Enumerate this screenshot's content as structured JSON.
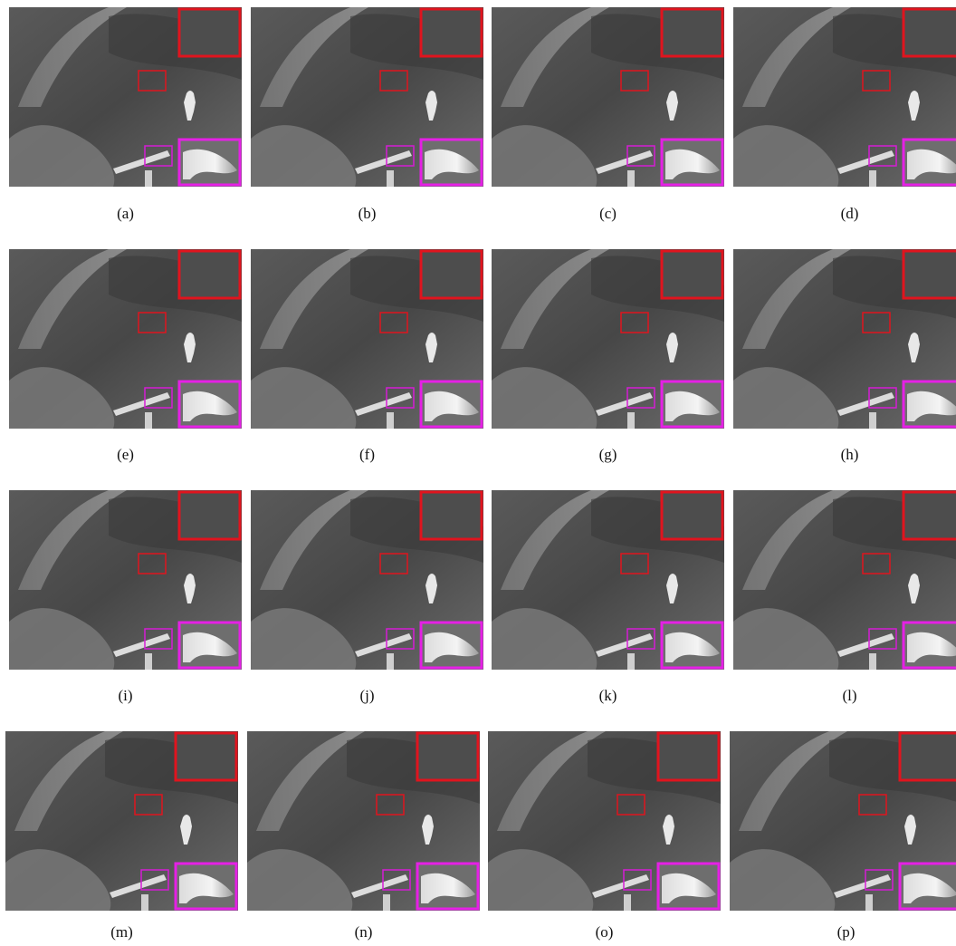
{
  "panels": [
    {
      "label": "(a)"
    },
    {
      "label": "(b)"
    },
    {
      "label": "(c)"
    },
    {
      "label": "(d)"
    },
    {
      "label": "(e)"
    },
    {
      "label": "(f)"
    },
    {
      "label": "(g)"
    },
    {
      "label": "(h)"
    },
    {
      "label": "(i)"
    },
    {
      "label": "(j)"
    },
    {
      "label": "(k)"
    },
    {
      "label": "(l)"
    },
    {
      "label": "(m)"
    },
    {
      "label": "(n)"
    },
    {
      "label": "(o)"
    },
    {
      "label": "(p)"
    }
  ]
}
